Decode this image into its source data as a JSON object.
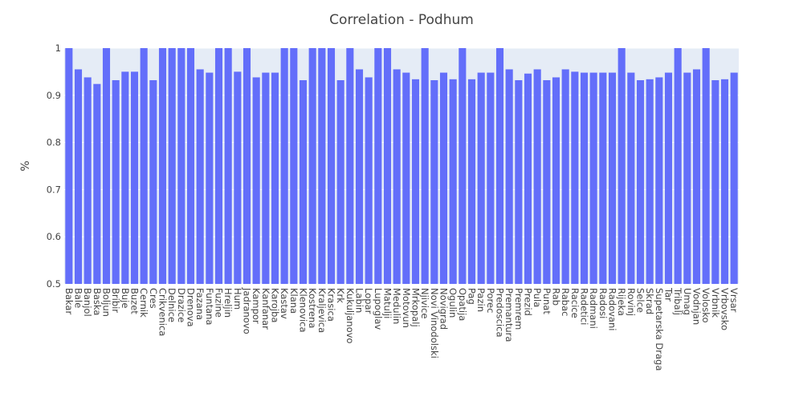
{
  "chart_data": {
    "type": "bar",
    "title": "Correlation - Podhum",
    "xlabel": "",
    "ylabel": "%",
    "ylim": [
      0.5,
      1.0
    ],
    "yticks": [
      0.5,
      0.6,
      0.7,
      0.8,
      0.9,
      1
    ],
    "grid": true,
    "legend": "none",
    "bar_color": "#636efa",
    "plot_bg": "#e5ecf6",
    "categories": [
      "Bakar",
      "Bale",
      "Banjol",
      "Baska",
      "Boljun",
      "Bribir",
      "Buje",
      "Buzet",
      "Cernik",
      "Cres",
      "Crikvenica",
      "Delnice",
      "Drazice",
      "Drenova",
      "Fazana",
      "Funtana",
      "Fuzine",
      "Hreljin",
      "Hum",
      "Jadranovo",
      "Kampor",
      "Kanfanar",
      "Karojba",
      "Kastav",
      "Klana",
      "Klenovica",
      "Kostrena",
      "Kraljevica",
      "Krasica",
      "Krk",
      "Kukuljanovo",
      "Labin",
      "Lopar",
      "Lupoglav",
      "Matulji",
      "Medulin",
      "Motovun",
      "Mrkopalj",
      "Njivice",
      "Novi Vinodolski",
      "Novigrad",
      "Ogulin",
      "Opatija",
      "Pag",
      "Pazin",
      "Porec",
      "Predoscica",
      "Premantura",
      "Premrem",
      "Prezid",
      "Pula",
      "Punat",
      "Rab",
      "Rabac",
      "Racice",
      "Radetici",
      "Radmani",
      "Radosi",
      "Radovani",
      "Rijeka",
      "Rovinj",
      "Selce",
      "Skrad",
      "Supetarska Draga",
      "Tar",
      "Tribalj",
      "Umag",
      "Vodnjan",
      "Volosko",
      "Vrbnik",
      "Vrbovsko",
      "Vrsar"
    ],
    "values": [
      1.0,
      0.955,
      0.938,
      0.924,
      1.0,
      0.932,
      0.95,
      0.95,
      1.0,
      0.932,
      1.0,
      1.0,
      1.0,
      1.0,
      0.955,
      0.948,
      1.0,
      1.0,
      0.95,
      1.0,
      0.938,
      0.948,
      0.948,
      1.0,
      1.0,
      0.932,
      1.0,
      1.0,
      1.0,
      0.932,
      1.0,
      0.955,
      0.938,
      1.0,
      1.0,
      0.955,
      0.948,
      0.934,
      1.0,
      0.932,
      0.948,
      0.934,
      1.0,
      0.934,
      0.948,
      0.948,
      1.0,
      0.955,
      0.932,
      0.946,
      0.955,
      0.932,
      0.938,
      0.955,
      0.95,
      0.948,
      0.948,
      0.948,
      0.948,
      1.0,
      0.948,
      0.932,
      0.934,
      0.938,
      0.948,
      1.0,
      0.948,
      0.955,
      1.0,
      0.932,
      0.934,
      0.948
    ]
  }
}
